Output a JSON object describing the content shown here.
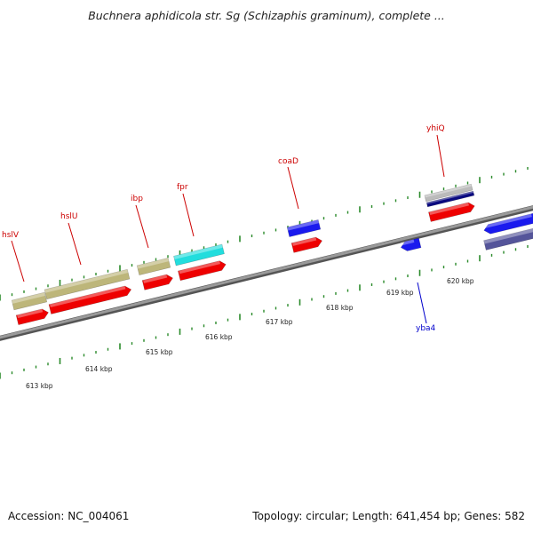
{
  "title": "Buchnera aphidicola str. Sg (Schizaphis graminum), complete ...",
  "footer": {
    "accession": "Accession: NC_004061",
    "summary": "Topology: circular; Length: 641,454 bp; Genes: 582"
  },
  "colors": {
    "backbone": "#7a7a7a",
    "tick": "#2a8a2a",
    "label_red": "#cc0000",
    "label_blue": "#0000cc",
    "gene_red": "#ee0000",
    "gene_khaki": "#bdb67a",
    "gene_cyan": "#22dddd",
    "gene_blue": "#1a1aee",
    "gene_slate": "#55559a",
    "gene_gray": "#bbbbbb",
    "gene_navy": "#0a0a80"
  },
  "axis": {
    "unit": "kbp",
    "tick_labels": [
      {
        "kbp": 613,
        "text": "613 kbp"
      },
      {
        "kbp": 614,
        "text": "614 kbp"
      },
      {
        "kbp": 615,
        "text": "615 kbp"
      },
      {
        "kbp": 616,
        "text": "616 kbp"
      },
      {
        "kbp": 617,
        "text": "617 kbp"
      },
      {
        "kbp": 618,
        "text": "618 kbp"
      },
      {
        "kbp": 619,
        "text": "619 kbp"
      },
      {
        "kbp": 620,
        "text": "620 kbp"
      }
    ]
  },
  "gene_labels": [
    {
      "name": "hslV",
      "strand": "forward"
    },
    {
      "name": "hslU",
      "strand": "forward"
    },
    {
      "name": "ibp",
      "strand": "forward"
    },
    {
      "name": "fpr",
      "strand": "forward"
    },
    {
      "name": "coaD",
      "strand": "forward"
    },
    {
      "name": "yhiQ",
      "strand": "forward"
    },
    {
      "name": "yba4",
      "strand": "reverse"
    }
  ]
}
